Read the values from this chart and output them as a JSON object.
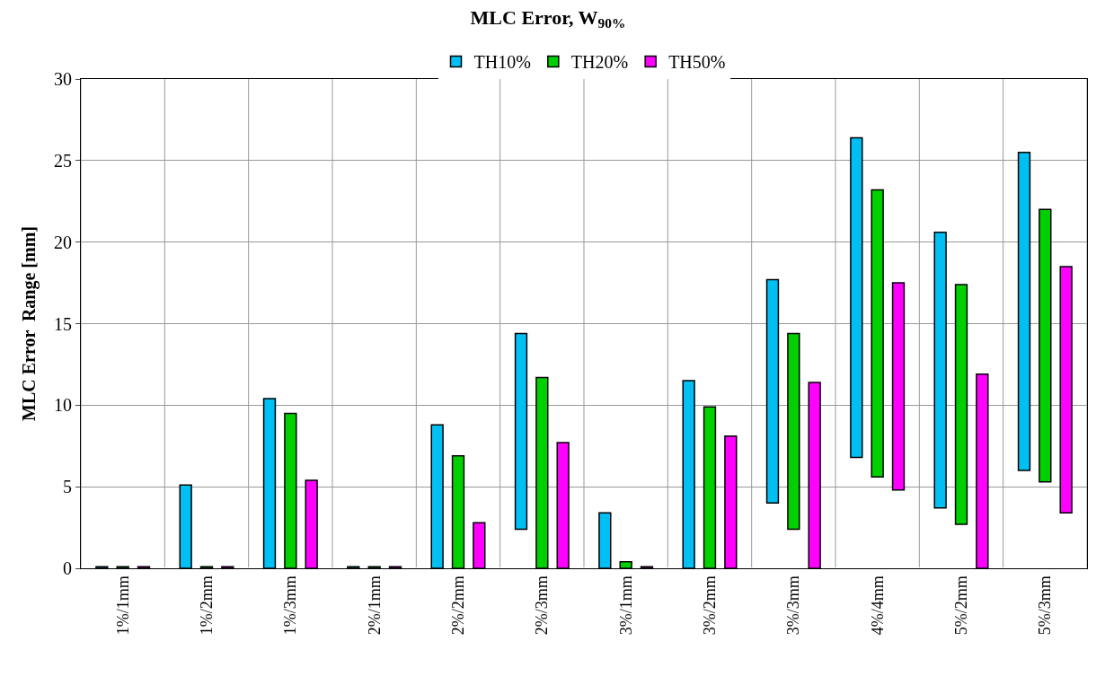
{
  "chart_data": {
    "type": "bar",
    "title": "MLC Error, W$_{90%}$",
    "ylabel": "MLC Error  Range [mm]",
    "categories": [
      "1%/1mm",
      "1%/2mm",
      "1%/3mm",
      "2%/1mm",
      "2%/2mm",
      "2%/3mm",
      "3%/1mm",
      "3%/2mm",
      "3%/3mm",
      "4%/4mm",
      "5%/2mm",
      "5%/3mm"
    ],
    "series": [
      {
        "name": "TH10%",
        "color": "#00bff3",
        "base": [
          0,
          0,
          0,
          0,
          0,
          2.4,
          0,
          0,
          4.0,
          6.8,
          3.7,
          6.0
        ],
        "values": [
          0.1,
          5.1,
          10.4,
          0.1,
          8.8,
          12.0,
          3.4,
          11.5,
          13.7,
          19.6,
          16.9,
          19.5
        ]
      },
      {
        "name": "TH20%",
        "color": "#00d000",
        "base": [
          0,
          0,
          0,
          0,
          0,
          0,
          0,
          0,
          2.4,
          5.6,
          2.7,
          5.3
        ],
        "values": [
          0.1,
          0.1,
          9.5,
          0.1,
          6.9,
          11.7,
          0.4,
          9.9,
          12.0,
          17.6,
          14.7,
          16.7
        ]
      },
      {
        "name": "TH50%",
        "color": "#ff00ff",
        "base": [
          0,
          0,
          0,
          0,
          0,
          0,
          0,
          0,
          0,
          4.8,
          0,
          3.4
        ],
        "values": [
          0.1,
          0.1,
          5.4,
          0.1,
          2.8,
          7.7,
          0.1,
          8.1,
          11.4,
          12.7,
          11.9,
          15.1
        ]
      }
    ],
    "ylim": [
      0,
      30
    ],
    "yticks": [
      0,
      5,
      10,
      15,
      20,
      25,
      30
    ],
    "grid": true,
    "legend": "top"
  }
}
